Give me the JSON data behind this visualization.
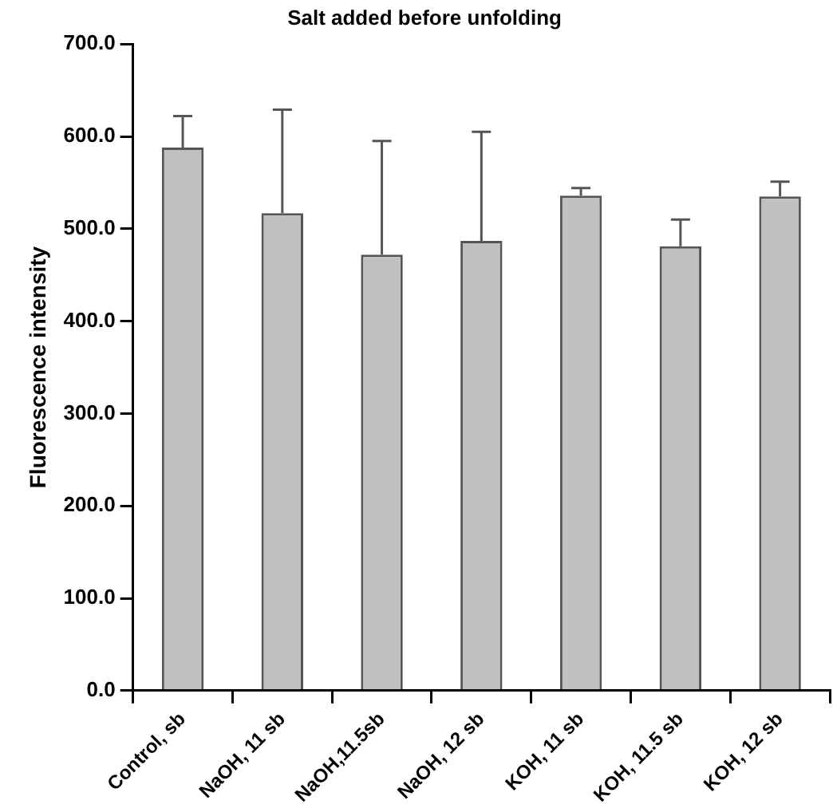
{
  "chart_data": {
    "type": "bar",
    "title": "Salt added before unfolding",
    "ylabel": "Fluorescence intensity",
    "categories": [
      "Control, sb",
      "NaOH, 11 sb",
      "NaOH,11.5sb",
      "NaOH, 12 sb",
      "KOH, 11 sb",
      "KOH, 11.5 sb",
      "KOH, 12 sb"
    ],
    "values": [
      588,
      517,
      472,
      487,
      536,
      481,
      535
    ],
    "errors": [
      [
        588,
        622
      ],
      [
        517,
        629
      ],
      [
        472,
        595
      ],
      [
        487,
        605
      ],
      [
        536,
        544
      ],
      [
        481,
        510
      ],
      [
        535,
        551
      ]
    ],
    "color": "#c0c0c0",
    "ylim": [
      0,
      700
    ],
    "yticks": [
      {
        "value": 0,
        "label": "0.0"
      },
      {
        "value": 100,
        "label": "100.0"
      },
      {
        "value": 200,
        "label": "200.0"
      },
      {
        "value": 300,
        "label": "300.0"
      },
      {
        "value": 400,
        "label": "400.0"
      },
      {
        "value": 500,
        "label": "500.0"
      },
      {
        "value": 600,
        "label": "600.0"
      },
      {
        "value": 700,
        "label": "700.0"
      }
    ],
    "grid": false,
    "legend": false
  }
}
